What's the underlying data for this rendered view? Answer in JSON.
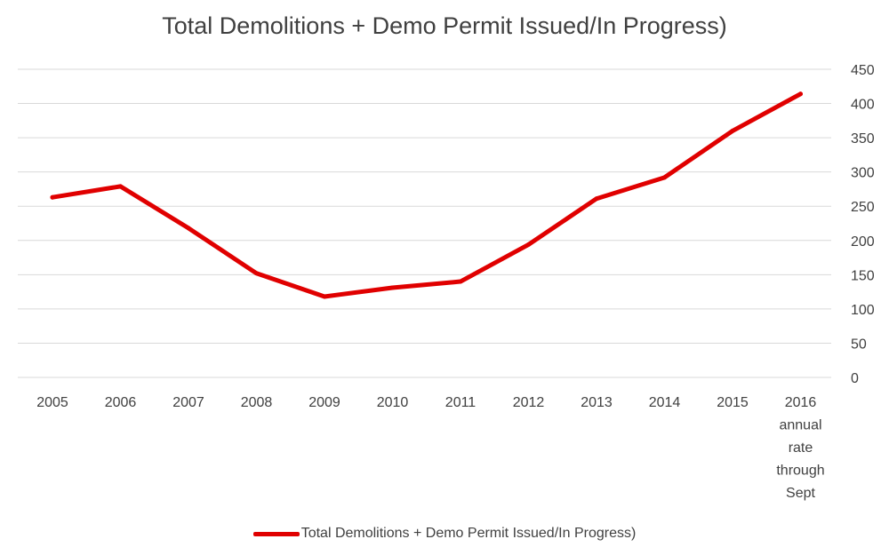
{
  "chart_data": {
    "type": "line",
    "title": "Total Demolitions + Demo Permit Issued/In Progress)",
    "xlabel": "",
    "ylabel": "",
    "categories": [
      "2005",
      "2006",
      "2007",
      "2008",
      "2009",
      "2010",
      "2011",
      "2012",
      "2013",
      "2014",
      "2015",
      "2016 annual rate through Sept"
    ],
    "category_lines": [
      [
        "2005"
      ],
      [
        "2006"
      ],
      [
        "2007"
      ],
      [
        "2008"
      ],
      [
        "2009"
      ],
      [
        "2010"
      ],
      [
        "2011"
      ],
      [
        "2012"
      ],
      [
        "2013"
      ],
      [
        "2014"
      ],
      [
        "2015"
      ],
      [
        "2016",
        "annual",
        "rate",
        "through",
        "Sept"
      ]
    ],
    "series": [
      {
        "name": "Total Demolitions + Demo Permit Issued/In Progress)",
        "color": "#e00000",
        "values": [
          263,
          279,
          218,
          152,
          118,
          131,
          140,
          194,
          261,
          292,
          360,
          414
        ]
      }
    ],
    "ylim": [
      0,
      450
    ],
    "yticks": [
      0,
      50,
      100,
      150,
      200,
      250,
      300,
      350,
      400,
      450
    ],
    "y_axis_side": "right",
    "grid": true,
    "legend_position": "bottom"
  }
}
